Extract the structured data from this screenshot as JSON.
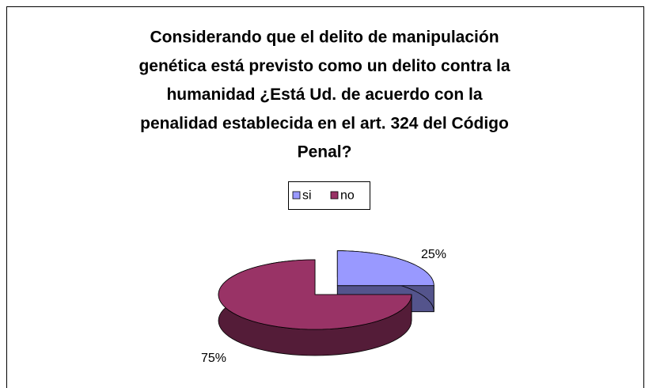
{
  "chart_data": {
    "type": "pie",
    "title": [
      "Considerando que el delito de  manipulación",
      "genética está previsto como un delito contra la",
      "humanidad ¿Está Ud. de acuerdo con la",
      "penalidad establecida en el art. 324 del Código",
      "Penal?"
    ],
    "categories": [
      "si",
      "no"
    ],
    "values": [
      25,
      75
    ],
    "value_labels": [
      "25%",
      "75%"
    ],
    "colors": [
      "#9999ff",
      "#993366"
    ],
    "legend": "top"
  }
}
